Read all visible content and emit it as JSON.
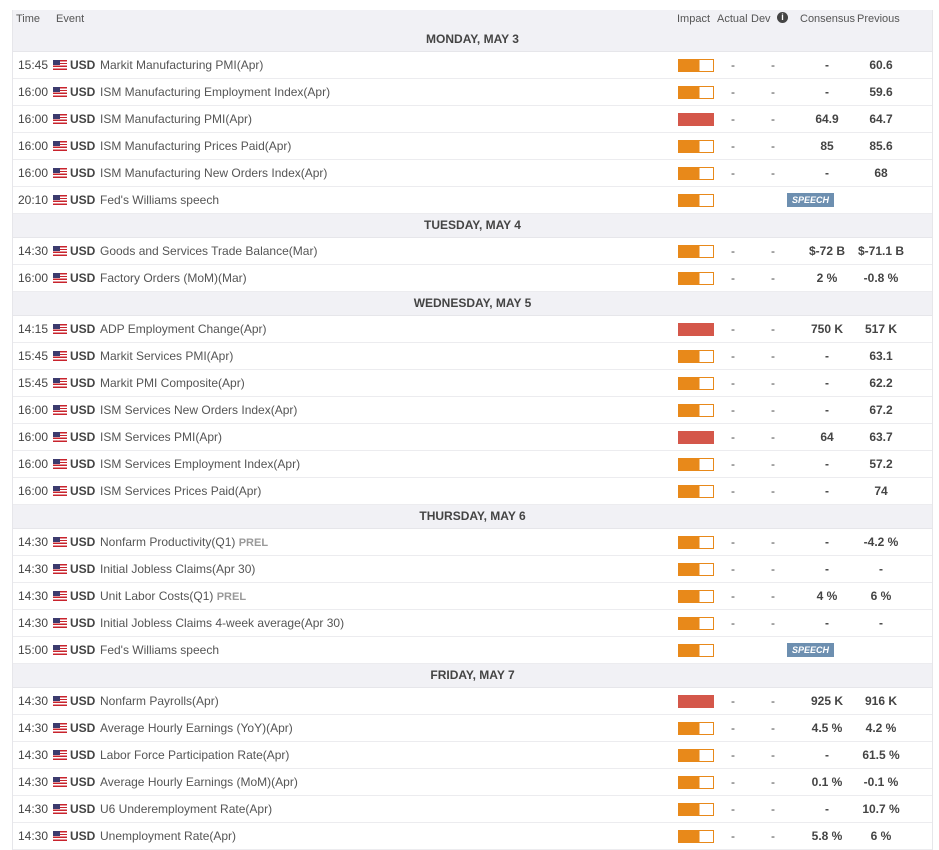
{
  "header": {
    "time": "Time",
    "event": "Event",
    "impact": "Impact",
    "actual": "Actual",
    "dev": "Dev",
    "info_icon": "i",
    "consensus": "Consensus",
    "previous": "Previous"
  },
  "colors": {
    "medium": "#e8891a",
    "high": "#d4574a",
    "speech": "#6d8fb0"
  },
  "days": [
    {
      "label": "MONDAY, MAY 3",
      "events": [
        {
          "time": "15:45",
          "cur": "USD",
          "event": "Markit Manufacturing PMI(Apr)",
          "impact": "medium",
          "actual": "-",
          "dev": "-",
          "consensus": "-",
          "previous": "60.6"
        },
        {
          "time": "16:00",
          "cur": "USD",
          "event": "ISM Manufacturing Employment Index(Apr)",
          "impact": "medium",
          "actual": "-",
          "dev": "-",
          "consensus": "-",
          "previous": "59.6"
        },
        {
          "time": "16:00",
          "cur": "USD",
          "event": "ISM Manufacturing PMI(Apr)",
          "impact": "high",
          "actual": "-",
          "dev": "-",
          "consensus": "64.9",
          "previous": "64.7"
        },
        {
          "time": "16:00",
          "cur": "USD",
          "event": "ISM Manufacturing Prices Paid(Apr)",
          "impact": "medium",
          "actual": "-",
          "dev": "-",
          "consensus": "85",
          "previous": "85.6"
        },
        {
          "time": "16:00",
          "cur": "USD",
          "event": "ISM Manufacturing New Orders Index(Apr)",
          "impact": "medium",
          "actual": "-",
          "dev": "-",
          "consensus": "-",
          "previous": "68"
        },
        {
          "time": "20:10",
          "cur": "USD",
          "event": "Fed's Williams speech",
          "impact": "medium",
          "speech": "SPEECH"
        }
      ]
    },
    {
      "label": "TUESDAY, MAY 4",
      "events": [
        {
          "time": "14:30",
          "cur": "USD",
          "event": "Goods and Services Trade Balance(Mar)",
          "impact": "medium",
          "actual": "-",
          "dev": "-",
          "consensus": "$-72 B",
          "previous": "$-71.1 B"
        },
        {
          "time": "16:00",
          "cur": "USD",
          "event": "Factory Orders (MoM)(Mar)",
          "impact": "medium",
          "actual": "-",
          "dev": "-",
          "consensus": "2 %",
          "previous": "-0.8 %"
        }
      ]
    },
    {
      "label": "WEDNESDAY, MAY 5",
      "events": [
        {
          "time": "14:15",
          "cur": "USD",
          "event": "ADP Employment Change(Apr)",
          "impact": "high",
          "actual": "-",
          "dev": "-",
          "consensus": "750 K",
          "previous": "517 K"
        },
        {
          "time": "15:45",
          "cur": "USD",
          "event": "Markit Services PMI(Apr)",
          "impact": "medium",
          "actual": "-",
          "dev": "-",
          "consensus": "-",
          "previous": "63.1"
        },
        {
          "time": "15:45",
          "cur": "USD",
          "event": "Markit PMI Composite(Apr)",
          "impact": "medium",
          "actual": "-",
          "dev": "-",
          "consensus": "-",
          "previous": "62.2"
        },
        {
          "time": "16:00",
          "cur": "USD",
          "event": "ISM Services New Orders Index(Apr)",
          "impact": "medium",
          "actual": "-",
          "dev": "-",
          "consensus": "-",
          "previous": "67.2"
        },
        {
          "time": "16:00",
          "cur": "USD",
          "event": "ISM Services PMI(Apr)",
          "impact": "high",
          "actual": "-",
          "dev": "-",
          "consensus": "64",
          "previous": "63.7"
        },
        {
          "time": "16:00",
          "cur": "USD",
          "event": "ISM Services Employment Index(Apr)",
          "impact": "medium",
          "actual": "-",
          "dev": "-",
          "consensus": "-",
          "previous": "57.2"
        },
        {
          "time": "16:00",
          "cur": "USD",
          "event": "ISM Services Prices Paid(Apr)",
          "impact": "medium",
          "actual": "-",
          "dev": "-",
          "consensus": "-",
          "previous": "74"
        }
      ]
    },
    {
      "label": "THURSDAY, MAY 6",
      "events": [
        {
          "time": "14:30",
          "cur": "USD",
          "event": "Nonfarm Productivity(Q1)",
          "tag": "PREL",
          "impact": "medium",
          "actual": "-",
          "dev": "-",
          "consensus": "-",
          "previous": "-4.2 %"
        },
        {
          "time": "14:30",
          "cur": "USD",
          "event": "Initial Jobless Claims(Apr 30)",
          "impact": "medium",
          "actual": "-",
          "dev": "-",
          "consensus": "-",
          "previous": "-"
        },
        {
          "time": "14:30",
          "cur": "USD",
          "event": "Unit Labor Costs(Q1)",
          "tag": "PREL",
          "impact": "medium",
          "actual": "-",
          "dev": "-",
          "consensus": "4 %",
          "previous": "6 %"
        },
        {
          "time": "14:30",
          "cur": "USD",
          "event": "Initial Jobless Claims 4-week average(Apr 30)",
          "impact": "medium",
          "actual": "-",
          "dev": "-",
          "consensus": "-",
          "previous": "-"
        },
        {
          "time": "15:00",
          "cur": "USD",
          "event": "Fed's Williams speech",
          "impact": "medium",
          "speech": "SPEECH"
        }
      ]
    },
    {
      "label": "FRIDAY, MAY 7",
      "events": [
        {
          "time": "14:30",
          "cur": "USD",
          "event": "Nonfarm Payrolls(Apr)",
          "impact": "high",
          "actual": "-",
          "dev": "-",
          "consensus": "925 K",
          "previous": "916 K"
        },
        {
          "time": "14:30",
          "cur": "USD",
          "event": "Average Hourly Earnings (YoY)(Apr)",
          "impact": "medium",
          "actual": "-",
          "dev": "-",
          "consensus": "4.5 %",
          "previous": "4.2 %"
        },
        {
          "time": "14:30",
          "cur": "USD",
          "event": "Labor Force Participation Rate(Apr)",
          "impact": "medium",
          "actual": "-",
          "dev": "-",
          "consensus": "-",
          "previous": "61.5 %"
        },
        {
          "time": "14:30",
          "cur": "USD",
          "event": "Average Hourly Earnings (MoM)(Apr)",
          "impact": "medium",
          "actual": "-",
          "dev": "-",
          "consensus": "0.1 %",
          "previous": "-0.1 %"
        },
        {
          "time": "14:30",
          "cur": "USD",
          "event": "U6 Underemployment Rate(Apr)",
          "impact": "medium",
          "actual": "-",
          "dev": "-",
          "consensus": "-",
          "previous": "10.7 %"
        },
        {
          "time": "14:30",
          "cur": "USD",
          "event": "Unemployment Rate(Apr)",
          "impact": "medium",
          "actual": "-",
          "dev": "-",
          "consensus": "5.8 %",
          "previous": "6 %"
        }
      ]
    }
  ]
}
